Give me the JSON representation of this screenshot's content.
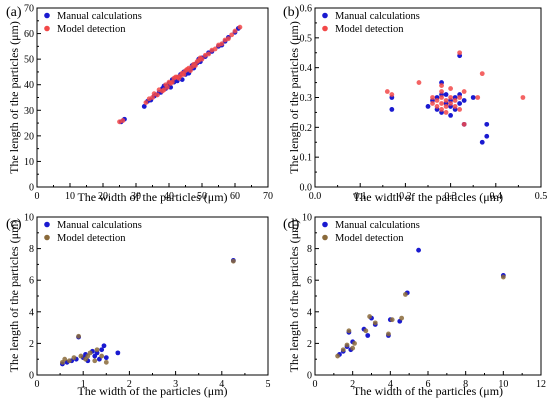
{
  "chart_data": [
    {
      "type": "scatter",
      "panel_label": "(a)",
      "xlabel": "The width of the particles (μm)",
      "ylabel": "The length of the particles (μm)",
      "xlim": [
        0,
        70
      ],
      "ylim": [
        0,
        70
      ],
      "xticks": [
        "0",
        "10",
        "20",
        "30",
        "40",
        "50",
        "60",
        "70"
      ],
      "yticks": [
        "0",
        "10",
        "20",
        "30",
        "40",
        "50",
        "60",
        "70"
      ],
      "legend_position": "top-left",
      "series": [
        {
          "name": "Manual calculations",
          "color": "#1a1ad0",
          "points": [
            [
              25.5,
              25.5
            ],
            [
              26.5,
              26.5
            ],
            [
              32.5,
              31.5
            ],
            [
              33.5,
              33.5
            ],
            [
              34.5,
              34
            ],
            [
              35.5,
              35.5
            ],
            [
              36,
              36
            ],
            [
              37,
              37
            ],
            [
              37.5,
              37
            ],
            [
              38,
              38.5
            ],
            [
              38.5,
              39.5
            ],
            [
              39,
              38.5
            ],
            [
              39.5,
              39.5
            ],
            [
              40,
              40.5
            ],
            [
              40.5,
              39
            ],
            [
              41,
              42
            ],
            [
              41.5,
              41
            ],
            [
              42,
              42.5
            ],
            [
              42.5,
              41.5
            ],
            [
              43,
              43
            ],
            [
              43.5,
              44
            ],
            [
              44,
              42
            ],
            [
              44.5,
              45
            ],
            [
              45,
              44
            ],
            [
              45.5,
              45.5
            ],
            [
              46,
              44.5
            ],
            [
              46.5,
              46
            ],
            [
              47,
              47.5
            ],
            [
              47.5,
              46.5
            ],
            [
              48,
              48
            ],
            [
              48.5,
              48.5
            ],
            [
              49,
              50
            ],
            [
              49.5,
              49
            ],
            [
              50,
              50.5
            ],
            [
              51,
              51
            ],
            [
              52,
              52.5
            ],
            [
              53,
              53
            ],
            [
              55,
              55
            ],
            [
              56,
              55.5
            ],
            [
              57,
              57
            ],
            [
              58,
              58.5
            ],
            [
              60,
              60.5
            ],
            [
              61,
              62
            ]
          ]
        },
        {
          "name": "Model detection",
          "color": "#f24848",
          "points": [
            [
              25,
              25.5
            ],
            [
              26,
              26
            ],
            [
              33,
              33
            ],
            [
              34,
              34.5
            ],
            [
              35,
              35
            ],
            [
              35.5,
              36.5
            ],
            [
              36.5,
              36
            ],
            [
              37,
              38
            ],
            [
              38,
              37.5
            ],
            [
              38.5,
              38
            ],
            [
              39,
              40
            ],
            [
              39.5,
              39
            ],
            [
              40,
              41
            ],
            [
              40.5,
              40.5
            ],
            [
              41,
              41
            ],
            [
              41.5,
              42.5
            ],
            [
              42,
              43
            ],
            [
              42.5,
              43
            ],
            [
              43,
              42.5
            ],
            [
              43.5,
              43.5
            ],
            [
              44,
              44.5
            ],
            [
              44.5,
              44
            ],
            [
              45,
              45.5
            ],
            [
              45.5,
              46
            ],
            [
              46,
              46.5
            ],
            [
              46.5,
              45.5
            ],
            [
              47,
              47
            ],
            [
              47.5,
              48
            ],
            [
              48,
              47.5
            ],
            [
              48.5,
              49
            ],
            [
              49,
              49.5
            ],
            [
              49.5,
              50.5
            ],
            [
              50,
              50
            ],
            [
              51,
              51.5
            ],
            [
              52,
              52
            ],
            [
              53,
              53.5
            ],
            [
              54,
              54
            ],
            [
              55,
              55.5
            ],
            [
              56,
              56
            ],
            [
              57,
              57.5
            ],
            [
              58,
              58
            ],
            [
              59,
              59.5
            ],
            [
              60,
              61
            ],
            [
              61.5,
              62.5
            ]
          ]
        }
      ]
    },
    {
      "type": "scatter",
      "panel_label": "(b)",
      "xlabel": "The width of the particles (μm)",
      "ylabel": "The length of the particles (μm)",
      "xlim": [
        0.0,
        0.5
      ],
      "ylim": [
        0.0,
        0.6
      ],
      "xticks": [
        "0.0",
        "0.1",
        "0.2",
        "0.3",
        "0.4",
        "0.5"
      ],
      "yticks": [
        "0.0",
        "0.1",
        "0.2",
        "0.3",
        "0.4",
        "0.5",
        "0.6"
      ],
      "legend_position": "top-left",
      "series": [
        {
          "name": "Manual calculations",
          "color": "#1a1ad0",
          "points": [
            [
              0.17,
              0.3
            ],
            [
              0.17,
              0.26
            ],
            [
              0.25,
              0.27
            ],
            [
              0.26,
              0.29
            ],
            [
              0.27,
              0.3
            ],
            [
              0.27,
              0.26
            ],
            [
              0.28,
              0.31
            ],
            [
              0.28,
              0.25
            ],
            [
              0.29,
              0.28
            ],
            [
              0.29,
              0.31
            ],
            [
              0.3,
              0.27
            ],
            [
              0.3,
              0.29
            ],
            [
              0.3,
              0.24
            ],
            [
              0.31,
              0.3
            ],
            [
              0.31,
              0.26
            ],
            [
              0.32,
              0.28
            ],
            [
              0.32,
              0.31
            ],
            [
              0.33,
              0.29
            ],
            [
              0.33,
              0.21
            ],
            [
              0.35,
              0.3
            ],
            [
              0.38,
              0.21
            ],
            [
              0.37,
              0.15
            ],
            [
              0.38,
              0.17
            ],
            [
              0.32,
              0.44
            ],
            [
              0.28,
              0.35
            ]
          ]
        },
        {
          "name": "Model detection",
          "color": "#f24848",
          "points": [
            [
              0.16,
              0.32
            ],
            [
              0.17,
              0.31
            ],
            [
              0.26,
              0.28
            ],
            [
              0.26,
              0.3
            ],
            [
              0.27,
              0.27
            ],
            [
              0.27,
              0.29
            ],
            [
              0.28,
              0.26
            ],
            [
              0.28,
              0.28
            ],
            [
              0.28,
              0.3
            ],
            [
              0.28,
              0.32
            ],
            [
              0.29,
              0.27
            ],
            [
              0.29,
              0.29
            ],
            [
              0.29,
              0.25
            ],
            [
              0.3,
              0.28
            ],
            [
              0.3,
              0.3
            ],
            [
              0.3,
              0.33
            ],
            [
              0.31,
              0.27
            ],
            [
              0.31,
              0.29
            ],
            [
              0.32,
              0.3
            ],
            [
              0.32,
              0.26
            ],
            [
              0.33,
              0.32
            ],
            [
              0.33,
              0.21
            ],
            [
              0.36,
              0.3
            ],
            [
              0.37,
              0.38
            ],
            [
              0.46,
              0.3
            ],
            [
              0.32,
              0.45
            ],
            [
              0.28,
              0.34
            ],
            [
              0.23,
              0.35
            ]
          ]
        }
      ]
    },
    {
      "type": "scatter",
      "panel_label": "(c)",
      "xlabel": "The width of the particles (μm)",
      "ylabel": "The length of the particles (μm)",
      "xlim": [
        0,
        5
      ],
      "ylim": [
        0,
        10
      ],
      "xticks": [
        "0",
        "1",
        "2",
        "3",
        "4",
        "5"
      ],
      "yticks": [
        "0",
        "2",
        "4",
        "6",
        "8",
        "10"
      ],
      "legend_position": "top-left",
      "series": [
        {
          "name": "Manual calculations",
          "color": "#1a1ad0",
          "points": [
            [
              0.55,
              0.7
            ],
            [
              0.65,
              0.8
            ],
            [
              0.75,
              0.9
            ],
            [
              0.85,
              1.0
            ],
            [
              0.9,
              2.4
            ],
            [
              1.0,
              1.1
            ],
            [
              1.05,
              1.3
            ],
            [
              1.1,
              0.9
            ],
            [
              1.2,
              1.5
            ],
            [
              1.25,
              1.2
            ],
            [
              1.3,
              1.4
            ],
            [
              1.35,
              1.0
            ],
            [
              1.4,
              1.6
            ],
            [
              1.45,
              1.85
            ],
            [
              1.5,
              1.1
            ],
            [
              1.75,
              1.4
            ],
            [
              4.25,
              7.25
            ]
          ]
        },
        {
          "name": "Model detection",
          "color": "#8a6a3a",
          "points": [
            [
              0.55,
              0.8
            ],
            [
              0.6,
              1.0
            ],
            [
              0.7,
              0.9
            ],
            [
              0.8,
              1.1
            ],
            [
              0.9,
              2.45
            ],
            [
              0.95,
              1.2
            ],
            [
              1.05,
              1.0
            ],
            [
              1.1,
              1.2
            ],
            [
              1.15,
              1.4
            ],
            [
              1.25,
              0.9
            ],
            [
              1.3,
              1.6
            ],
            [
              1.4,
              1.2
            ],
            [
              1.5,
              0.8
            ],
            [
              4.25,
              7.2
            ]
          ]
        }
      ]
    },
    {
      "type": "scatter",
      "panel_label": "(d)",
      "xlabel": "The width of the particles (μm)",
      "ylabel": "The length of the particles (μm)",
      "xlim": [
        0,
        12
      ],
      "ylim": [
        0,
        10
      ],
      "xticks": [
        "0",
        "2",
        "4",
        "6",
        "8",
        "10",
        "12"
      ],
      "yticks": [
        "0",
        "2",
        "4",
        "6",
        "8",
        "10"
      ],
      "legend_position": "top-left",
      "series": [
        {
          "name": "Manual calculations",
          "color": "#1a1ad0",
          "points": [
            [
              1.3,
              1.3
            ],
            [
              1.5,
              1.5
            ],
            [
              1.7,
              1.8
            ],
            [
              1.8,
              2.7
            ],
            [
              1.9,
              1.6
            ],
            [
              2.0,
              2.1
            ],
            [
              2.6,
              2.9
            ],
            [
              2.8,
              2.5
            ],
            [
              3.0,
              3.6
            ],
            [
              3.2,
              3.2
            ],
            [
              3.9,
              2.5
            ],
            [
              4.0,
              3.5
            ],
            [
              4.5,
              3.4
            ],
            [
              4.9,
              5.2
            ],
            [
              5.5,
              7.9
            ],
            [
              10.0,
              6.3
            ]
          ]
        },
        {
          "name": "Model detection",
          "color": "#8a6a3a",
          "points": [
            [
              1.2,
              1.2
            ],
            [
              1.5,
              1.6
            ],
            [
              1.7,
              1.9
            ],
            [
              1.8,
              2.8
            ],
            [
              2.0,
              1.7
            ],
            [
              2.1,
              2.0
            ],
            [
              2.7,
              2.8
            ],
            [
              2.9,
              3.7
            ],
            [
              3.2,
              3.3
            ],
            [
              3.9,
              2.6
            ],
            [
              4.1,
              3.5
            ],
            [
              4.6,
              3.6
            ],
            [
              4.8,
              5.1
            ],
            [
              10.0,
              6.2
            ]
          ]
        }
      ]
    }
  ]
}
